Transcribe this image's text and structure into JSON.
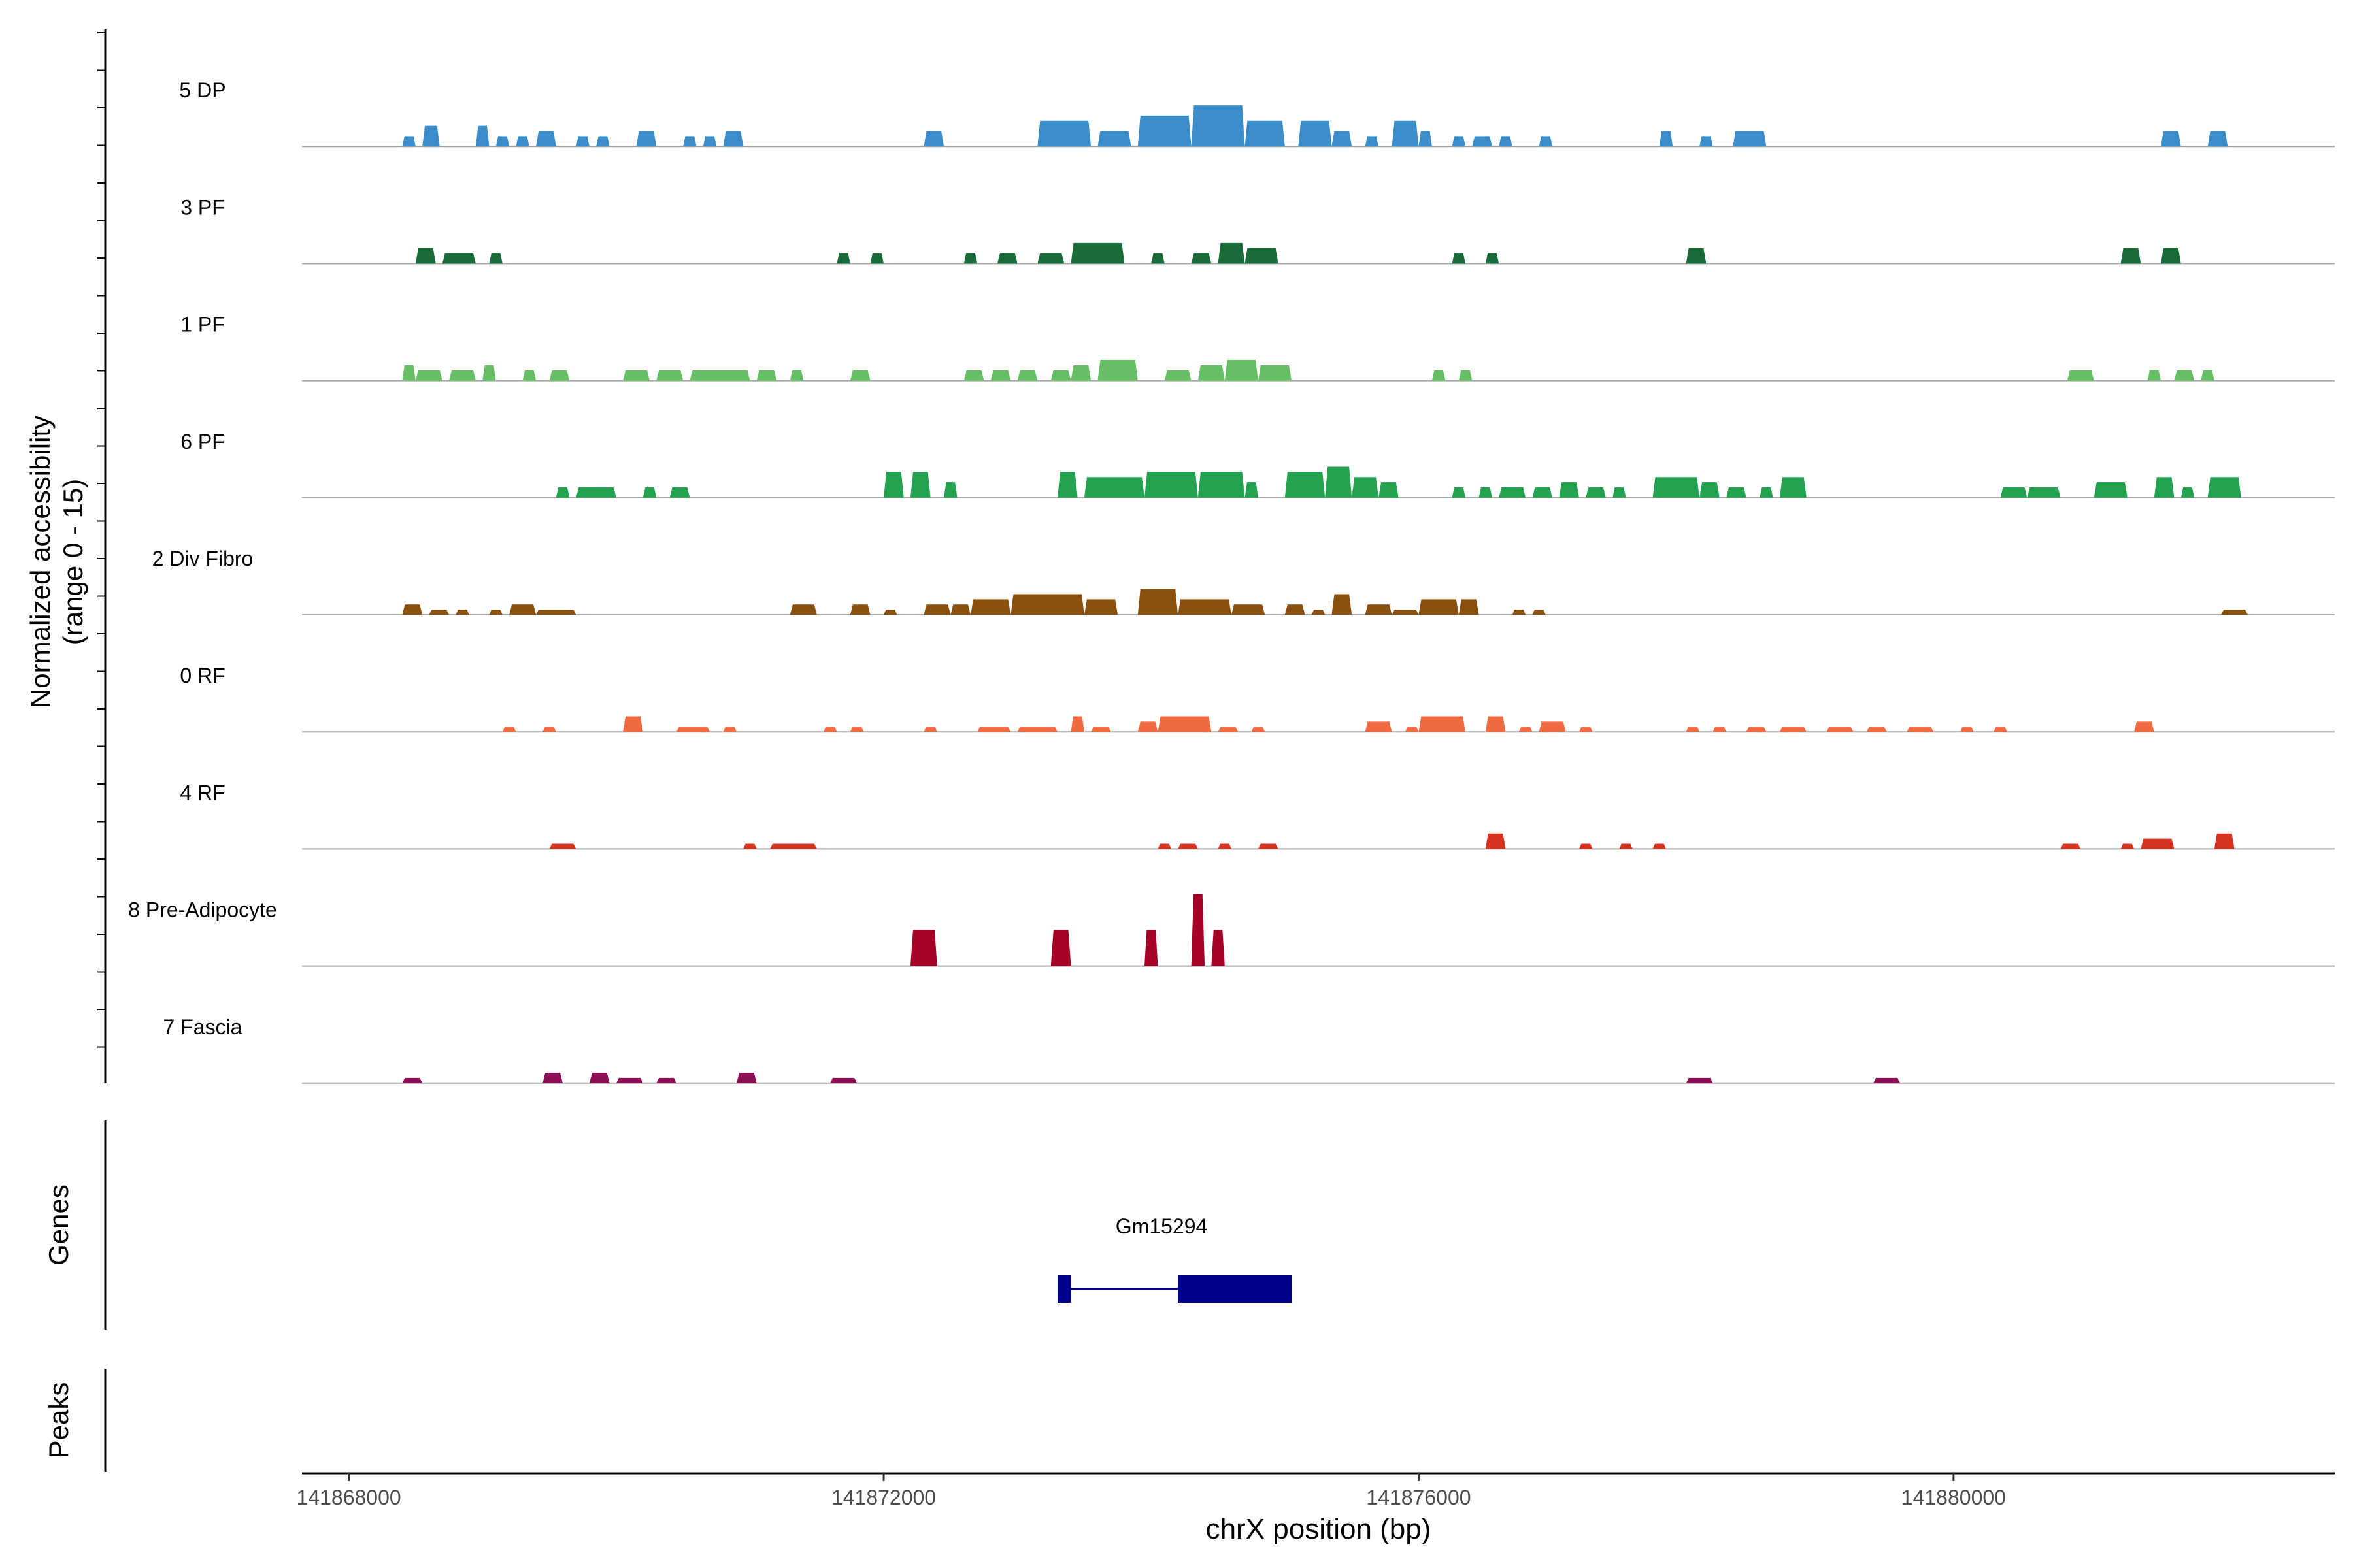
{
  "chart_data": {
    "type": "area",
    "title": "",
    "region": {
      "chromosome": "chrX",
      "start": 141867650,
      "end": 141882850
    },
    "ylabel_lines": [
      "Normalized accessibility",
      "(range 0 - 15)"
    ],
    "yrange": [
      0,
      15
    ],
    "xlabel": "chrX position (bp)",
    "xticks": [
      {
        "value": 141868000,
        "label": "141868000"
      },
      {
        "value": 141872000,
        "label": "141872000"
      },
      {
        "value": 141876000,
        "label": "141876000"
      },
      {
        "value": 141880000,
        "label": "141880000"
      }
    ],
    "panel_labels": {
      "genes": "Genes",
      "peaks": "Peaks"
    },
    "tracks": [
      {
        "name": "5 DP",
        "color": "#3a8dc8",
        "segments": [
          [
            141868400,
            141868500,
            2
          ],
          [
            141868550,
            141868680,
            4
          ],
          [
            141868950,
            141869050,
            4
          ],
          [
            141869100,
            141869200,
            2
          ],
          [
            141869250,
            141869350,
            2
          ],
          [
            141869400,
            141869550,
            3
          ],
          [
            141869700,
            141869800,
            2
          ],
          [
            141869850,
            141869950,
            2
          ],
          [
            141870150,
            141870300,
            3
          ],
          [
            141870500,
            141870600,
            2
          ],
          [
            141870650,
            141870750,
            2
          ],
          [
            141870800,
            141870950,
            3
          ],
          [
            141872300,
            141872450,
            3
          ],
          [
            141873150,
            141873550,
            5
          ],
          [
            141873600,
            141873850,
            3
          ],
          [
            141873900,
            141874300,
            6
          ],
          [
            141874300,
            141874700,
            8
          ],
          [
            141874700,
            141875000,
            5
          ],
          [
            141875100,
            141875350,
            5
          ],
          [
            141875350,
            141875500,
            3
          ],
          [
            141875600,
            141875700,
            2
          ],
          [
            141875800,
            141876000,
            5
          ],
          [
            141876000,
            141876100,
            3
          ],
          [
            141876250,
            141876350,
            2
          ],
          [
            141876400,
            141876550,
            2
          ],
          [
            141876600,
            141876700,
            2
          ],
          [
            141876900,
            141877000,
            2
          ],
          [
            141877800,
            141877900,
            3
          ],
          [
            141878100,
            141878200,
            2
          ],
          [
            141878350,
            141878600,
            3
          ],
          [
            141881550,
            141881700,
            3
          ],
          [
            141881900,
            141882050,
            3
          ]
        ]
      },
      {
        "name": "3 PF",
        "color": "#1a6b3a",
        "segments": [
          [
            141868500,
            141868650,
            3
          ],
          [
            141868700,
            141868950,
            2
          ],
          [
            141869050,
            141869150,
            2
          ],
          [
            141871650,
            141871750,
            2
          ],
          [
            141871900,
            141872000,
            2
          ],
          [
            141872600,
            141872700,
            2
          ],
          [
            141872850,
            141873000,
            2
          ],
          [
            141873150,
            141873350,
            2
          ],
          [
            141873400,
            141873800,
            4
          ],
          [
            141874000,
            141874100,
            2
          ],
          [
            141874300,
            141874450,
            2
          ],
          [
            141874500,
            141874700,
            4
          ],
          [
            141874700,
            141874950,
            3
          ],
          [
            141876250,
            141876350,
            2
          ],
          [
            141876500,
            141876600,
            2
          ],
          [
            141878000,
            141878150,
            3
          ],
          [
            141881250,
            141881400,
            3
          ],
          [
            141881550,
            141881700,
            3
          ]
        ]
      },
      {
        "name": "1 PF",
        "color": "#66bf64",
        "segments": [
          [
            141868400,
            141868500,
            3
          ],
          [
            141868500,
            141868700,
            2
          ],
          [
            141868750,
            141868950,
            2
          ],
          [
            141869000,
            141869100,
            3
          ],
          [
            141869300,
            141869400,
            2
          ],
          [
            141869500,
            141869650,
            2
          ],
          [
            141870050,
            141870250,
            2
          ],
          [
            141870300,
            141870500,
            2
          ],
          [
            141870550,
            141871000,
            2
          ],
          [
            141871050,
            141871200,
            2
          ],
          [
            141871300,
            141871400,
            2
          ],
          [
            141871750,
            141871900,
            2
          ],
          [
            141872600,
            141872750,
            2
          ],
          [
            141872800,
            141872950,
            2
          ],
          [
            141873000,
            141873150,
            2
          ],
          [
            141873250,
            141873400,
            2
          ],
          [
            141873400,
            141873550,
            3
          ],
          [
            141873600,
            141873900,
            4
          ],
          [
            141874100,
            141874300,
            2
          ],
          [
            141874350,
            141874550,
            3
          ],
          [
            141874550,
            141874800,
            4
          ],
          [
            141874800,
            141875050,
            3
          ],
          [
            141876100,
            141876200,
            2
          ],
          [
            141876300,
            141876400,
            2
          ],
          [
            141880850,
            141881050,
            2
          ],
          [
            141881450,
            141881550,
            2
          ],
          [
            141881650,
            141881800,
            2
          ],
          [
            141881850,
            141881950,
            2
          ]
        ]
      },
      {
        "name": "6 PF",
        "color": "#23a350",
        "segments": [
          [
            141869550,
            141869650,
            2
          ],
          [
            141869700,
            141870000,
            2
          ],
          [
            141870200,
            141870300,
            2
          ],
          [
            141870400,
            141870550,
            2
          ],
          [
            141872000,
            141872150,
            5
          ],
          [
            141872200,
            141872350,
            5
          ],
          [
            141872450,
            141872550,
            3
          ],
          [
            141873300,
            141873450,
            5
          ],
          [
            141873500,
            141873950,
            4
          ],
          [
            141873950,
            141874350,
            5
          ],
          [
            141874350,
            141874700,
            5
          ],
          [
            141874700,
            141874800,
            3
          ],
          [
            141875000,
            141875300,
            5
          ],
          [
            141875300,
            141875500,
            6
          ],
          [
            141875500,
            141875700,
            4
          ],
          [
            141875700,
            141875850,
            3
          ],
          [
            141876250,
            141876350,
            2
          ],
          [
            141876450,
            141876550,
            2
          ],
          [
            141876600,
            141876800,
            2
          ],
          [
            141876850,
            141877000,
            2
          ],
          [
            141877050,
            141877200,
            3
          ],
          [
            141877250,
            141877400,
            2
          ],
          [
            141877450,
            141877550,
            2
          ],
          [
            141877750,
            141878100,
            4
          ],
          [
            141878100,
            141878250,
            3
          ],
          [
            141878300,
            141878450,
            2
          ],
          [
            141878550,
            141878650,
            2
          ],
          [
            141878700,
            141878900,
            4
          ],
          [
            141880350,
            141880550,
            2
          ],
          [
            141880550,
            141880800,
            2
          ],
          [
            141881050,
            141881300,
            3
          ],
          [
            141881500,
            141881650,
            4
          ],
          [
            141881700,
            141881800,
            2
          ],
          [
            141881900,
            141882150,
            4
          ]
        ]
      },
      {
        "name": "2 Div Fibro",
        "color": "#8a5010",
        "segments": [
          [
            141868400,
            141868550,
            2
          ],
          [
            141868600,
            141868750,
            1
          ],
          [
            141868800,
            141868900,
            1
          ],
          [
            141869050,
            141869150,
            1
          ],
          [
            141869200,
            141869400,
            2
          ],
          [
            141869400,
            141869700,
            1
          ],
          [
            141871300,
            141871500,
            2
          ],
          [
            141871750,
            141871900,
            2
          ],
          [
            141872000,
            141872100,
            1
          ],
          [
            141872300,
            141872500,
            2
          ],
          [
            141872500,
            141872650,
            2
          ],
          [
            141872650,
            141872950,
            3
          ],
          [
            141872950,
            141873500,
            4
          ],
          [
            141873500,
            141873750,
            3
          ],
          [
            141873900,
            141874200,
            5
          ],
          [
            141874200,
            141874600,
            3
          ],
          [
            141874600,
            141874850,
            2
          ],
          [
            141875000,
            141875150,
            2
          ],
          [
            141875200,
            141875300,
            1
          ],
          [
            141875350,
            141875500,
            4
          ],
          [
            141875600,
            141875800,
            2
          ],
          [
            141875800,
            141876000,
            1
          ],
          [
            141876000,
            141876300,
            3
          ],
          [
            141876300,
            141876450,
            3
          ],
          [
            141876700,
            141876800,
            1
          ],
          [
            141876850,
            141876950,
            1
          ],
          [
            141882000,
            141882200,
            1
          ]
        ]
      },
      {
        "name": "0 RF",
        "color": "#ef6a40",
        "segments": [
          [
            141869150,
            141869250,
            1
          ],
          [
            141869450,
            141869550,
            1
          ],
          [
            141870050,
            141870200,
            3
          ],
          [
            141870450,
            141870700,
            1
          ],
          [
            141870800,
            141870900,
            1
          ],
          [
            141871550,
            141871650,
            1
          ],
          [
            141871750,
            141871850,
            1
          ],
          [
            141872300,
            141872400,
            1
          ],
          [
            141872700,
            141872950,
            1
          ],
          [
            141873000,
            141873300,
            1
          ],
          [
            141873400,
            141873500,
            3
          ],
          [
            141873550,
            141873700,
            1
          ],
          [
            141873900,
            141874050,
            2
          ],
          [
            141874050,
            141874450,
            3
          ],
          [
            141874500,
            141874650,
            1
          ],
          [
            141874750,
            141874850,
            1
          ],
          [
            141875600,
            141875800,
            2
          ],
          [
            141875900,
            141876000,
            1
          ],
          [
            141876000,
            141876350,
            3
          ],
          [
            141876500,
            141876650,
            3
          ],
          [
            141876750,
            141876850,
            1
          ],
          [
            141876900,
            141877100,
            2
          ],
          [
            141877200,
            141877300,
            1
          ],
          [
            141878000,
            141878100,
            1
          ],
          [
            141878200,
            141878300,
            1
          ],
          [
            141878450,
            141878600,
            1
          ],
          [
            141878700,
            141878900,
            1
          ],
          [
            141879050,
            141879250,
            1
          ],
          [
            141879350,
            141879500,
            1
          ],
          [
            141879650,
            141879850,
            1
          ],
          [
            141880050,
            141880150,
            1
          ],
          [
            141880300,
            141880400,
            1
          ],
          [
            141881350,
            141881500,
            2
          ]
        ]
      },
      {
        "name": "4 RF",
        "color": "#d6321f",
        "segments": [
          [
            141869500,
            141869700,
            1
          ],
          [
            141870950,
            141871050,
            1
          ],
          [
            141871150,
            141871500,
            1
          ],
          [
            141874050,
            141874150,
            1
          ],
          [
            141874200,
            141874350,
            1
          ],
          [
            141874500,
            141874600,
            1
          ],
          [
            141874800,
            141874950,
            1
          ],
          [
            141876500,
            141876650,
            3
          ],
          [
            141877200,
            141877300,
            1
          ],
          [
            141877500,
            141877600,
            1
          ],
          [
            141877750,
            141877850,
            1
          ],
          [
            141880800,
            141880950,
            1
          ],
          [
            141881250,
            141881350,
            1
          ],
          [
            141881400,
            141881650,
            2
          ],
          [
            141881950,
            141882100,
            3
          ]
        ]
      },
      {
        "name": "8 Pre-Adipocyte",
        "color": "#a50026",
        "segments": [
          [
            141872200,
            141872400,
            7
          ],
          [
            141873250,
            141873400,
            7
          ],
          [
            141873950,
            141874050,
            7
          ],
          [
            141874300,
            141874400,
            14
          ],
          [
            141874450,
            141874550,
            7
          ]
        ]
      },
      {
        "name": "7 Fascia",
        "color": "#8c0e54",
        "segments": [
          [
            141868400,
            141868550,
            1
          ],
          [
            141869450,
            141869600,
            2
          ],
          [
            141869800,
            141869950,
            2
          ],
          [
            141870000,
            141870200,
            1
          ],
          [
            141870300,
            141870450,
            1
          ],
          [
            141870900,
            141871050,
            2
          ],
          [
            141871600,
            141871800,
            1
          ],
          [
            141878000,
            141878200,
            1
          ],
          [
            141879400,
            141879600,
            1
          ]
        ]
      }
    ],
    "genes": [
      {
        "name": "Gm15294",
        "exons": [
          [
            141873300,
            141873400
          ],
          [
            141874200,
            141875050
          ]
        ],
        "start": 141873300,
        "end": 141875050,
        "strand": "-"
      }
    ],
    "peaks": []
  }
}
